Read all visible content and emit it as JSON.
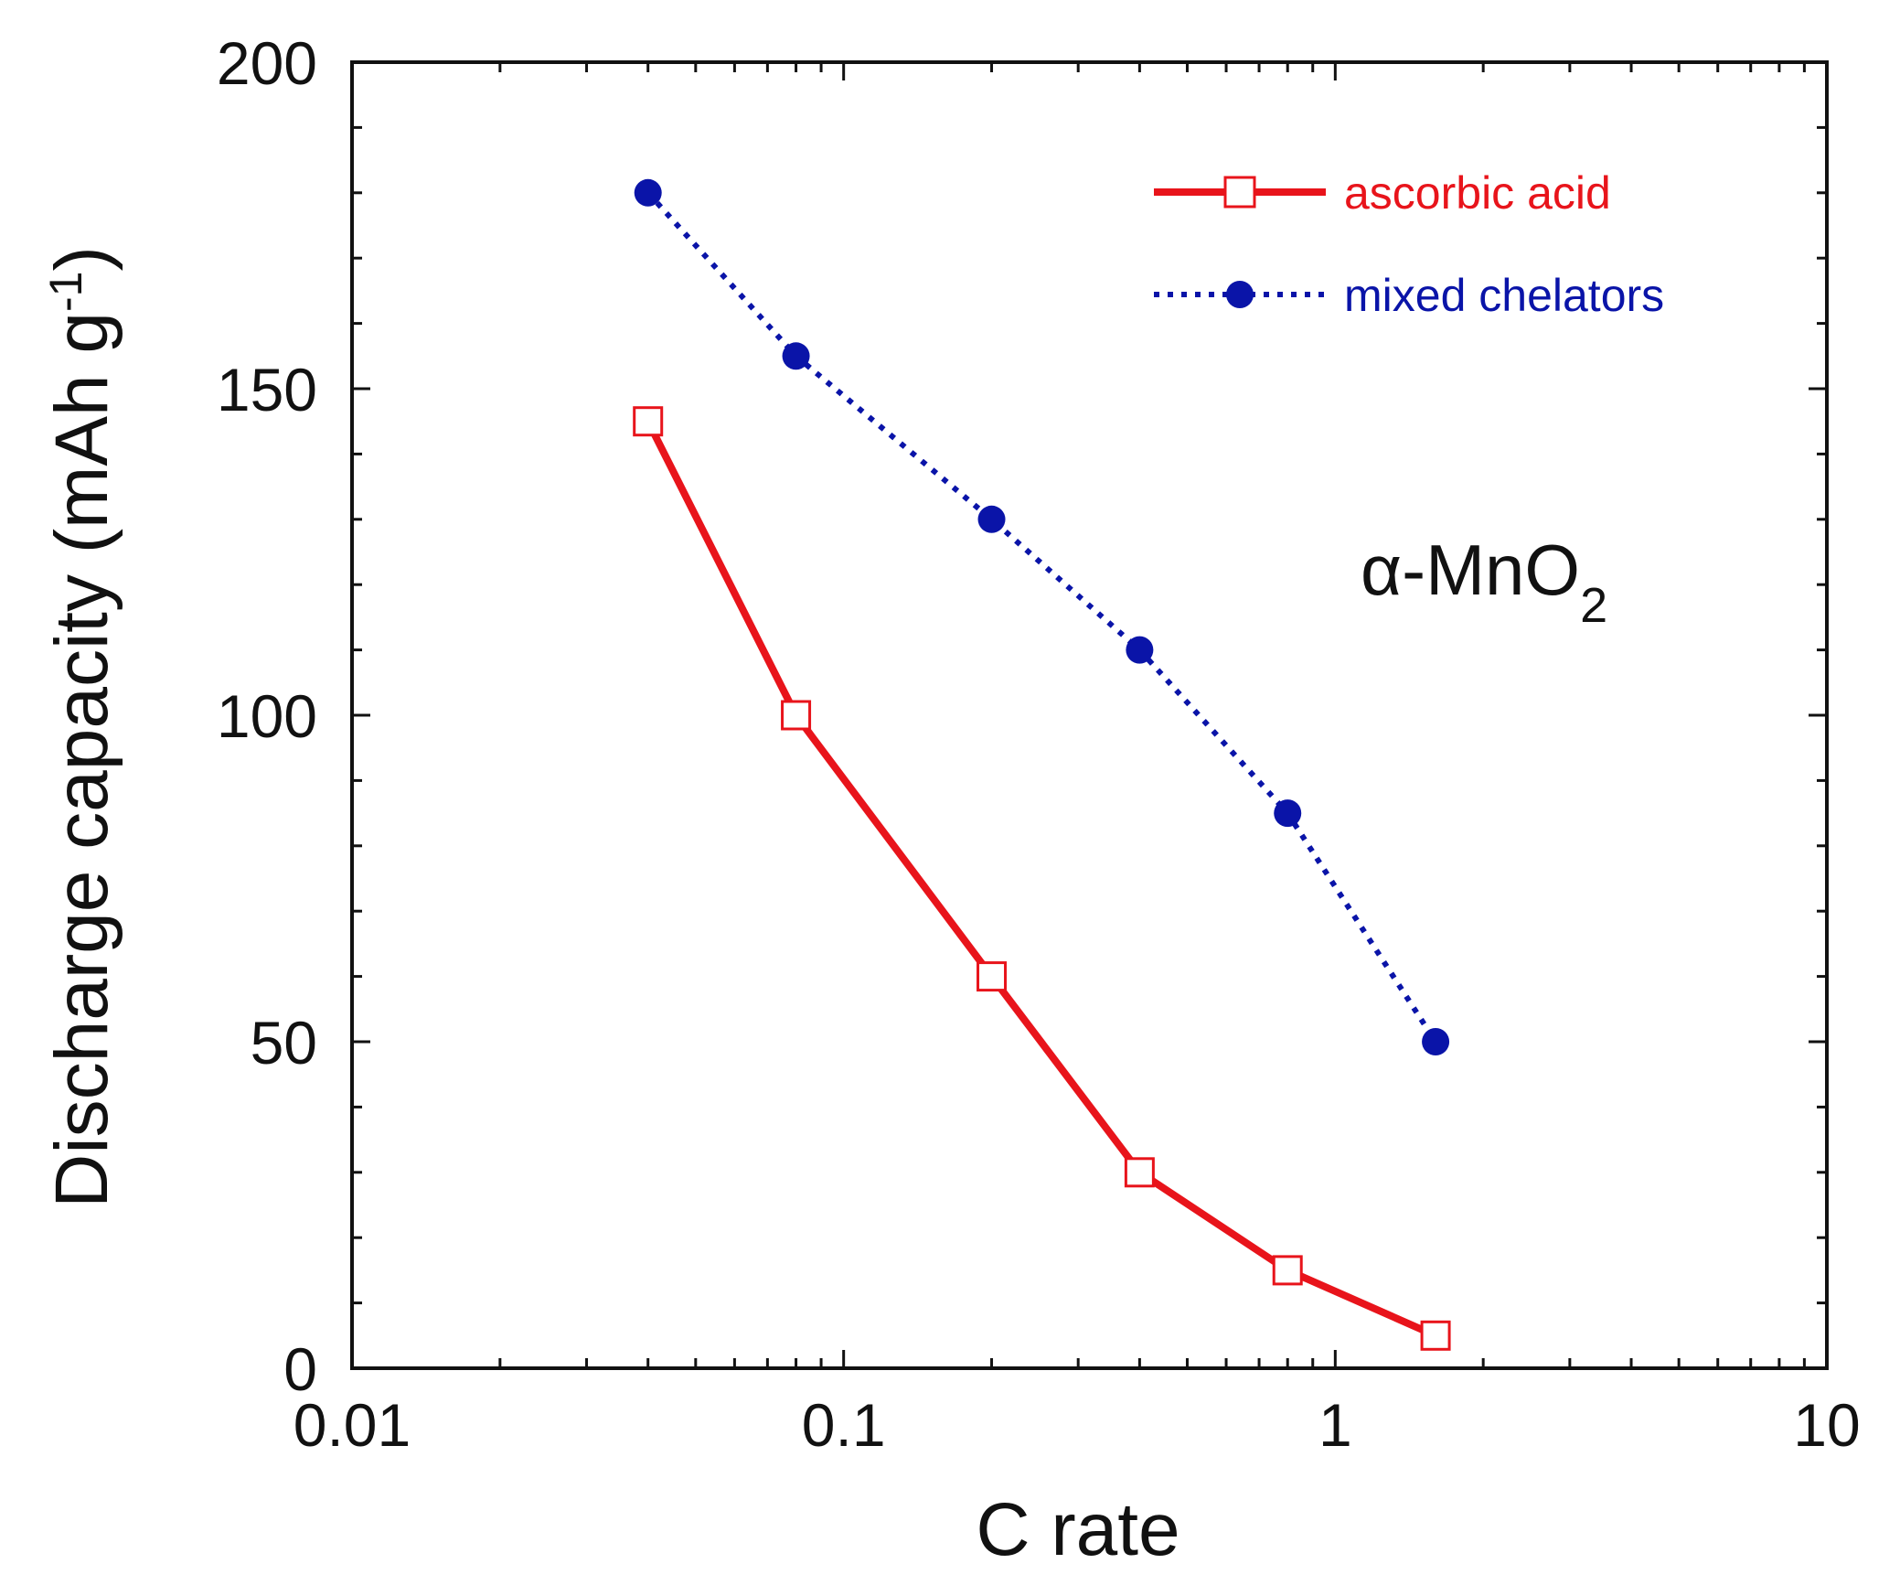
{
  "chart_data": {
    "type": "line",
    "xscale": "log",
    "xlim": [
      0.01,
      10
    ],
    "ylim": [
      0,
      200
    ],
    "xlabel": "C rate",
    "ylabel": "Discharge capacity (mAh g",
    "ylabel_sup": "-1",
    "ylabel_close": ")",
    "x_ticks": [
      {
        "value": 0.01,
        "label": "0.01"
      },
      {
        "value": 0.1,
        "label": "0.1"
      },
      {
        "value": 1,
        "label": "1"
      },
      {
        "value": 10,
        "label": "10"
      }
    ],
    "y_ticks": [
      {
        "value": 0,
        "label": "0"
      },
      {
        "value": 50,
        "label": "50"
      },
      {
        "value": 100,
        "label": "100"
      },
      {
        "value": 150,
        "label": "150"
      },
      {
        "value": 200,
        "label": "200"
      }
    ],
    "y_minor_step": 10,
    "grid": false,
    "legend_position": "top-right",
    "annotation": {
      "prefix": "α-MnO",
      "subscript": "2"
    },
    "series": [
      {
        "name": "ascorbic acid",
        "color": "#e8141b",
        "line_style": "solid",
        "marker": "open-square",
        "x": [
          0.04,
          0.08,
          0.2,
          0.4,
          0.8,
          1.6
        ],
        "y": [
          145,
          100,
          60,
          30,
          15,
          5
        ]
      },
      {
        "name": "mixed chelators",
        "color": "#0a14a8",
        "line_style": "dotted",
        "marker": "filled-circle",
        "x": [
          0.04,
          0.08,
          0.2,
          0.4,
          0.8,
          1.6
        ],
        "y": [
          180,
          155,
          130,
          110,
          85,
          50
        ]
      }
    ]
  }
}
